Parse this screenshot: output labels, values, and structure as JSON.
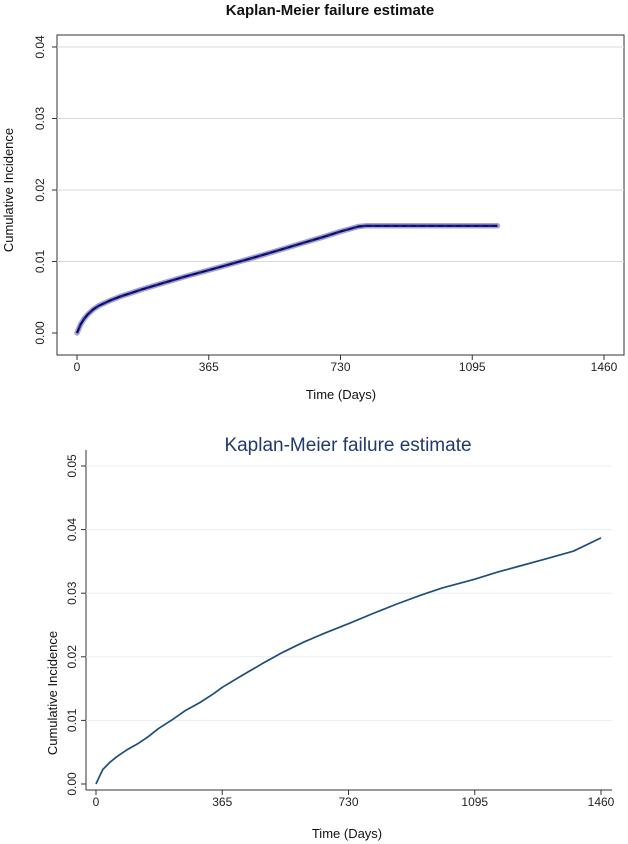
{
  "chart_data": [
    {
      "type": "line",
      "title": "Kaplan-Meier failure estimate",
      "xlabel": "Time (Days)",
      "ylabel": "Cumulative Incidence",
      "xticks": [
        "0",
        "365",
        "730",
        "1095",
        "1460"
      ],
      "yticks": [
        "0.00",
        "0.01",
        "0.02",
        "0.03",
        "0.04"
      ],
      "xlim": [
        0,
        1460
      ],
      "ylim": [
        0,
        0.04
      ],
      "grid": true,
      "colors": {
        "line": "#1a1a8c",
        "ci_band": "#5a5ab8"
      },
      "series": [
        {
          "x": [
            0,
            10,
            20,
            30,
            45,
            60,
            90,
            120,
            150,
            180,
            240,
            300,
            365,
            430,
            500,
            560,
            620,
            680,
            730,
            780,
            800,
            900,
            1000,
            1100,
            1165
          ],
          "y": [
            0,
            0.0012,
            0.002,
            0.0026,
            0.0033,
            0.0038,
            0.0045,
            0.0051,
            0.0056,
            0.0061,
            0.007,
            0.0079,
            0.0088,
            0.0097,
            0.0107,
            0.0116,
            0.0125,
            0.0134,
            0.0142,
            0.0149,
            0.015,
            0.015,
            0.015,
            0.015,
            0.015
          ]
        }
      ]
    },
    {
      "type": "line",
      "title": "Kaplan-Meier failure estimate",
      "xlabel": "Time (Days)",
      "ylabel": "Cumulative Incidence",
      "xticks": [
        "0",
        "365",
        "730",
        "1095",
        "1460"
      ],
      "yticks": [
        "0.00",
        "0.01",
        "0.02",
        "0.03",
        "0.04",
        "0.05"
      ],
      "xlim": [
        0,
        1460
      ],
      "ylim": [
        0,
        0.05
      ],
      "grid": true,
      "colors": {
        "line": "#1f4e79",
        "title": "#1f3a6b"
      },
      "series": [
        {
          "x": [
            0,
            10,
            20,
            40,
            60,
            90,
            120,
            150,
            180,
            220,
            260,
            300,
            340,
            365,
            420,
            480,
            540,
            600,
            660,
            730,
            800,
            870,
            940,
            1000,
            1095,
            1160,
            1220,
            1300,
            1380,
            1460
          ],
          "y": [
            0,
            0.0012,
            0.0023,
            0.0034,
            0.0043,
            0.0054,
            0.0063,
            0.0074,
            0.0087,
            0.0101,
            0.0116,
            0.0128,
            0.0142,
            0.0152,
            0.017,
            0.0189,
            0.0207,
            0.0223,
            0.0237,
            0.0252,
            0.0268,
            0.0283,
            0.0297,
            0.0308,
            0.0322,
            0.0333,
            0.0342,
            0.0354,
            0.0366,
            0.0387
          ]
        }
      ]
    }
  ]
}
